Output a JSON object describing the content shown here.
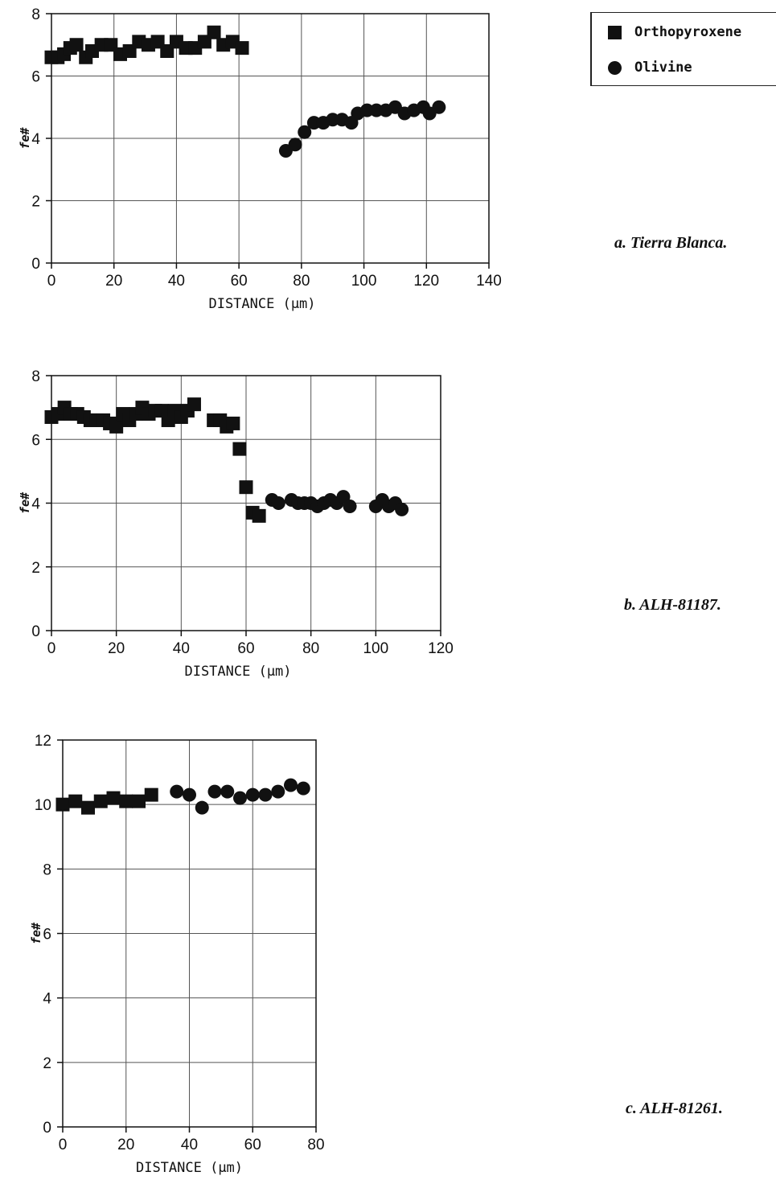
{
  "legend": {
    "items": [
      {
        "label": "Orthopyroxene",
        "marker": "square"
      },
      {
        "label": "Olivine",
        "marker": "circle"
      }
    ]
  },
  "colors": {
    "marker": "#111111",
    "grid": "#555555",
    "axis": "#111111"
  },
  "chart_data": [
    {
      "type": "scatter",
      "caption": "a. Tierra Blanca.",
      "xlabel": "DISTANCE (μm)",
      "ylabel": "fe#",
      "xlim": [
        0,
        140
      ],
      "ylim": [
        0,
        8
      ],
      "xticks": [
        0,
        20,
        40,
        60,
        80,
        100,
        120,
        140
      ],
      "yticks": [
        0,
        2,
        4,
        6,
        8
      ],
      "grid": true,
      "series": [
        {
          "name": "Orthopyroxene",
          "marker": "square",
          "x": [
            0,
            2,
            4,
            6,
            8,
            11,
            13,
            16,
            19,
            22,
            25,
            28,
            31,
            34,
            37,
            40,
            43,
            46,
            49,
            52,
            55,
            58,
            61
          ],
          "y": [
            6.6,
            6.6,
            6.7,
            6.9,
            7.0,
            6.6,
            6.8,
            7.0,
            7.0,
            6.7,
            6.8,
            7.1,
            7.0,
            7.1,
            6.8,
            7.1,
            6.9,
            6.9,
            7.1,
            7.4,
            7.0,
            7.1,
            6.9
          ]
        },
        {
          "name": "Olivine",
          "marker": "circle",
          "x": [
            75,
            78,
            81,
            84,
            87,
            90,
            93,
            96,
            98,
            101,
            104,
            107,
            110,
            113,
            116,
            119,
            121,
            124
          ],
          "y": [
            3.6,
            3.8,
            4.2,
            4.5,
            4.5,
            4.6,
            4.6,
            4.5,
            4.8,
            4.9,
            4.9,
            4.9,
            5.0,
            4.8,
            4.9,
            5.0,
            4.8,
            5.0
          ]
        }
      ]
    },
    {
      "type": "scatter",
      "caption": "b. ALH-81187.",
      "xlabel": "DISTANCE (μm)",
      "ylabel": "fe#",
      "xlim": [
        0,
        120
      ],
      "ylim": [
        0,
        8
      ],
      "xticks": [
        0,
        20,
        40,
        60,
        80,
        100,
        120
      ],
      "yticks": [
        0,
        2,
        4,
        6,
        8
      ],
      "grid": true,
      "series": [
        {
          "name": "Orthopyroxene",
          "marker": "square",
          "x": [
            0,
            2,
            4,
            6,
            8,
            10,
            12,
            14,
            16,
            18,
            20,
            22,
            24,
            26,
            28,
            30,
            32,
            34,
            36,
            38,
            40,
            42,
            44,
            50,
            52,
            54,
            56,
            58,
            60,
            62,
            64
          ],
          "y": [
            6.7,
            6.8,
            7.0,
            6.8,
            6.8,
            6.7,
            6.6,
            6.6,
            6.6,
            6.5,
            6.4,
            6.8,
            6.6,
            6.8,
            7.0,
            6.8,
            6.9,
            6.9,
            6.6,
            6.9,
            6.7,
            6.9,
            7.1,
            6.6,
            6.6,
            6.4,
            6.5,
            5.7,
            4.5,
            3.7,
            3.6
          ]
        },
        {
          "name": "Olivine",
          "marker": "circle",
          "x": [
            68,
            70,
            74,
            76,
            78,
            80,
            82,
            84,
            86,
            88,
            90,
            92,
            100,
            102,
            104,
            106,
            108
          ],
          "y": [
            4.1,
            4.0,
            4.1,
            4.0,
            4.0,
            4.0,
            3.9,
            4.0,
            4.1,
            4.0,
            4.2,
            3.9,
            3.9,
            4.1,
            3.9,
            4.0,
            3.8
          ]
        }
      ]
    },
    {
      "type": "scatter",
      "caption": "c. ALH-81261.",
      "xlabel": "DISTANCE (μm)",
      "ylabel": "fe#",
      "xlim": [
        0,
        80
      ],
      "ylim": [
        0,
        12
      ],
      "xticks": [
        0,
        20,
        40,
        60,
        80
      ],
      "yticks": [
        0,
        2,
        4,
        6,
        8,
        10,
        12
      ],
      "grid": true,
      "series": [
        {
          "name": "Orthopyroxene",
          "marker": "square",
          "x": [
            0,
            4,
            8,
            12,
            16,
            20,
            24,
            28
          ],
          "y": [
            10.0,
            10.1,
            9.9,
            10.1,
            10.2,
            10.1,
            10.1,
            10.3
          ]
        },
        {
          "name": "Olivine",
          "marker": "circle",
          "x": [
            36,
            40,
            44,
            48,
            52,
            56,
            60,
            64,
            68,
            72,
            76
          ],
          "y": [
            10.4,
            10.3,
            9.9,
            10.4,
            10.4,
            10.2,
            10.3,
            10.3,
            10.4,
            10.6,
            10.5
          ]
        }
      ]
    }
  ]
}
